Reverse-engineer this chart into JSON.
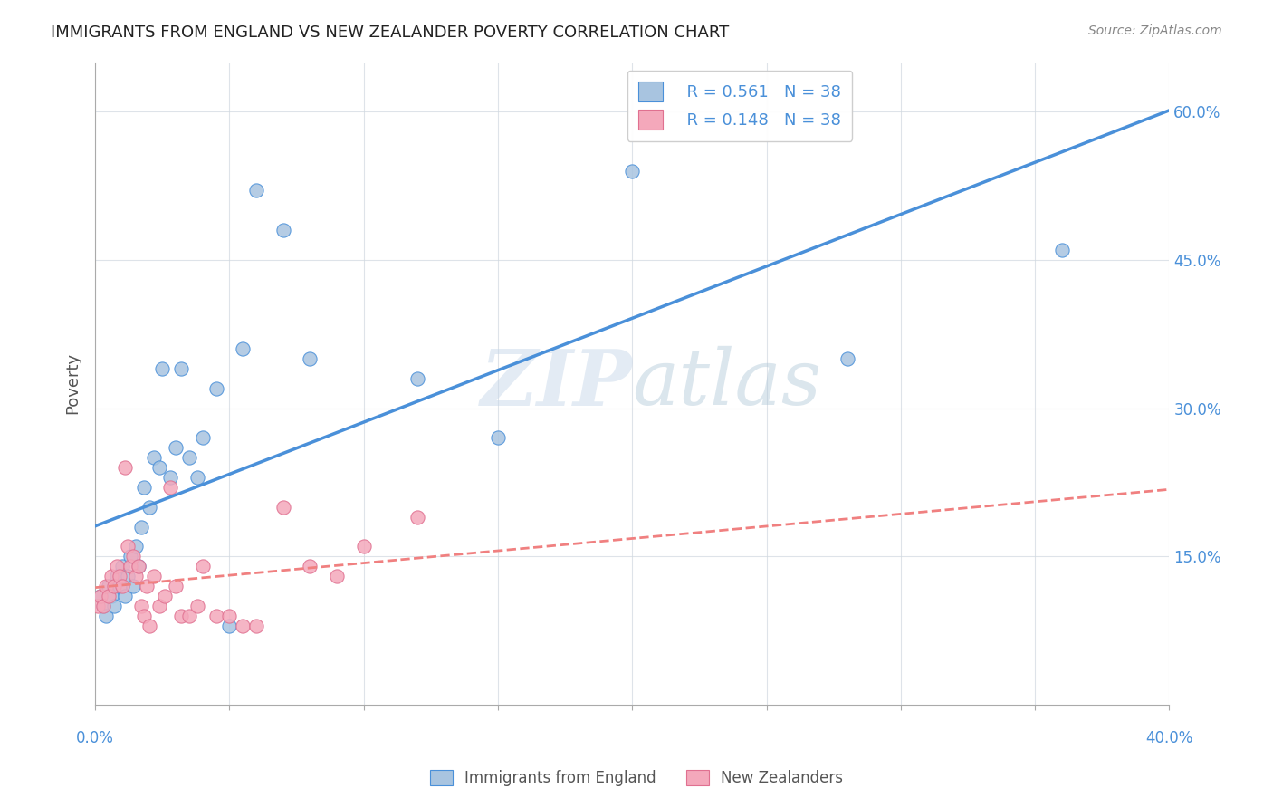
{
  "title": "IMMIGRANTS FROM ENGLAND VS NEW ZEALANDER POVERTY CORRELATION CHART",
  "source": "Source: ZipAtlas.com",
  "ylabel": "Poverty",
  "ytick_labels": [
    "15.0%",
    "30.0%",
    "45.0%",
    "60.0%"
  ],
  "ytick_values": [
    0.15,
    0.3,
    0.45,
    0.6
  ],
  "xlim": [
    0.0,
    0.4
  ],
  "ylim": [
    0.0,
    0.65
  ],
  "watermark_zip": "ZIP",
  "watermark_atlas": "atlas",
  "legend1_R": "R = 0.561",
  "legend1_N": "N = 38",
  "legend2_R": "R = 0.148",
  "legend2_N": "N = 38",
  "legend_bottom": [
    "Immigrants from England",
    "New Zealanders"
  ],
  "blue_color": "#a8c4e0",
  "pink_color": "#f4a8bb",
  "blue_line_color": "#4a90d9",
  "pink_line_color": "#f08080",
  "pink_edge_color": "#e07090",
  "england_x": [
    0.002,
    0.003,
    0.004,
    0.005,
    0.006,
    0.007,
    0.008,
    0.009,
    0.01,
    0.011,
    0.012,
    0.013,
    0.014,
    0.015,
    0.016,
    0.017,
    0.018,
    0.02,
    0.022,
    0.024,
    0.025,
    0.028,
    0.03,
    0.032,
    0.035,
    0.038,
    0.04,
    0.045,
    0.05,
    0.055,
    0.06,
    0.07,
    0.08,
    0.12,
    0.15,
    0.2,
    0.28,
    0.36
  ],
  "england_y": [
    0.11,
    0.1,
    0.09,
    0.12,
    0.11,
    0.1,
    0.13,
    0.12,
    0.14,
    0.11,
    0.13,
    0.15,
    0.12,
    0.16,
    0.14,
    0.18,
    0.22,
    0.2,
    0.25,
    0.24,
    0.34,
    0.23,
    0.26,
    0.34,
    0.25,
    0.23,
    0.27,
    0.32,
    0.08,
    0.36,
    0.52,
    0.48,
    0.35,
    0.33,
    0.27,
    0.54,
    0.35,
    0.46
  ],
  "nz_x": [
    0.001,
    0.002,
    0.003,
    0.004,
    0.005,
    0.006,
    0.007,
    0.008,
    0.009,
    0.01,
    0.011,
    0.012,
    0.013,
    0.014,
    0.015,
    0.016,
    0.017,
    0.018,
    0.019,
    0.02,
    0.022,
    0.024,
    0.026,
    0.028,
    0.03,
    0.032,
    0.035,
    0.038,
    0.04,
    0.045,
    0.05,
    0.055,
    0.06,
    0.07,
    0.08,
    0.09,
    0.1,
    0.12
  ],
  "nz_y": [
    0.1,
    0.11,
    0.1,
    0.12,
    0.11,
    0.13,
    0.12,
    0.14,
    0.13,
    0.12,
    0.24,
    0.16,
    0.14,
    0.15,
    0.13,
    0.14,
    0.1,
    0.09,
    0.12,
    0.08,
    0.13,
    0.1,
    0.11,
    0.22,
    0.12,
    0.09,
    0.09,
    0.1,
    0.14,
    0.09,
    0.09,
    0.08,
    0.08,
    0.2,
    0.14,
    0.13,
    0.16,
    0.19
  ],
  "xtick_vals": [
    0.0,
    0.05,
    0.1,
    0.15,
    0.2,
    0.25,
    0.3,
    0.35,
    0.4
  ]
}
